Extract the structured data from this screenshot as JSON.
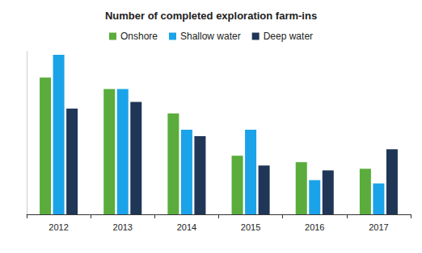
{
  "chart_data": {
    "type": "bar",
    "title": "Number of completed exploration farm-ins",
    "categories": [
      "2012",
      "2013",
      "2014",
      "2015",
      "2016",
      "2017"
    ],
    "series": [
      {
        "name": "Onshore",
        "color": "#5aac3c",
        "values": [
          42,
          38.5,
          31,
          18,
          16,
          14
        ]
      },
      {
        "name": "Shallow water",
        "color": "#1aa3e8",
        "values": [
          49,
          38.5,
          26,
          26,
          10.5,
          9.5
        ]
      },
      {
        "name": "Deep water",
        "color": "#1f3656",
        "values": [
          32.5,
          34.5,
          24,
          15,
          13.5,
          20
        ]
      }
    ],
    "ylim": [
      0,
      50
    ],
    "grid": false,
    "legend": "top",
    "tick_labels": "x"
  }
}
